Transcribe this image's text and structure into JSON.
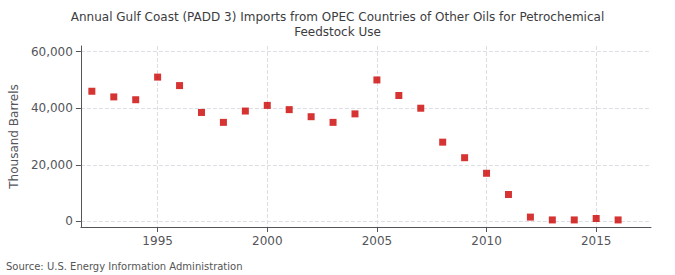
{
  "chart_data": {
    "type": "scatter",
    "title": "Annual Gulf Coast (PADD 3) Imports from OPEC Countries of Other Oils for Petrochemical\nFeedstock Use",
    "ylabel": "Thousand Barrels",
    "source": "Source: U.S. Energy Information Administration",
    "x": [
      1992,
      1993,
      1994,
      1995,
      1996,
      1997,
      1998,
      1999,
      2000,
      2001,
      2002,
      2003,
      2004,
      2005,
      2006,
      2007,
      2008,
      2009,
      2010,
      2011,
      2012,
      2013,
      2014,
      2015,
      2016
    ],
    "values": [
      46000,
      44000,
      43000,
      51000,
      48000,
      38500,
      35000,
      39000,
      41000,
      39500,
      37000,
      35000,
      38000,
      50000,
      44500,
      40000,
      28000,
      22500,
      17000,
      9500,
      1500,
      500,
      500,
      1000,
      500
    ],
    "color": "#cc0000",
    "marker": "square",
    "xlim": [
      1991.5,
      2017.5
    ],
    "xticks": [
      1995,
      2000,
      2005,
      2010,
      2015
    ],
    "ylim": [
      -2000,
      62000
    ],
    "yticks": [
      0,
      {
        "value": 20000,
        "label": "20,000"
      },
      {
        "value": 40000,
        "label": "40,000"
      },
      {
        "value": 60000,
        "label": "60,000"
      }
    ],
    "grid": true
  }
}
